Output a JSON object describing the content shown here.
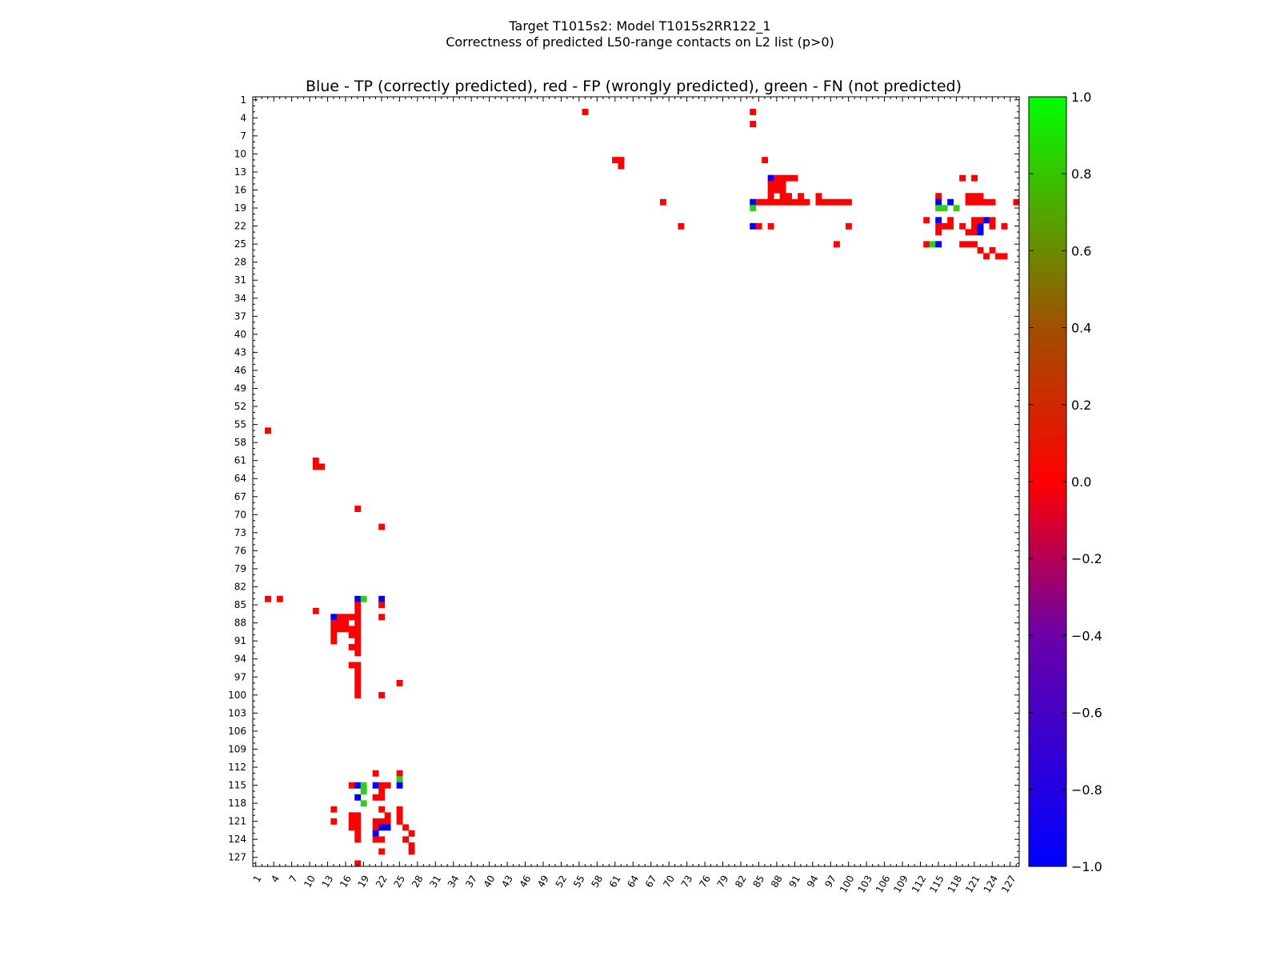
{
  "title": "Target T1015s2: Model T1015s2RR122_1",
  "subtitle": "Correctness of predicted L50-range contacts on L2 list (p>0)",
  "chart_data": {
    "type": "heatmap",
    "title": "Blue - TP (correctly predicted), red - FP (wrongly predicted), green - FN (not predicted)",
    "n_residues": 128,
    "x_ticks": [
      1,
      4,
      7,
      10,
      13,
      16,
      19,
      22,
      25,
      28,
      31,
      34,
      37,
      40,
      43,
      46,
      49,
      52,
      55,
      58,
      61,
      64,
      67,
      70,
      73,
      76,
      79,
      82,
      85,
      88,
      91,
      94,
      97,
      100,
      103,
      106,
      109,
      112,
      115,
      118,
      121,
      124,
      127
    ],
    "y_ticks": [
      1,
      4,
      7,
      10,
      13,
      16,
      19,
      22,
      25,
      28,
      31,
      34,
      37,
      40,
      43,
      46,
      49,
      52,
      55,
      58,
      61,
      64,
      67,
      70,
      73,
      76,
      79,
      82,
      85,
      88,
      91,
      94,
      97,
      100,
      103,
      106,
      109,
      112,
      115,
      118,
      121,
      124,
      127
    ],
    "colorbar": {
      "min": -1.0,
      "max": 1.0,
      "ticks": [
        "1.0",
        "0.8",
        "0.6",
        "0.4",
        "0.2",
        "0.0",
        "−0.2",
        "−0.4",
        "−0.6",
        "−0.8",
        "−1.0"
      ],
      "tick_values": [
        1.0,
        0.8,
        0.6,
        0.4,
        0.2,
        0.0,
        -0.2,
        -0.4,
        -0.6,
        -0.8,
        -1.0
      ],
      "colors": {
        "low": "#0000ff",
        "mid_low": "#8000a0",
        "zero": "#ff0000",
        "high": "#00ff00"
      }
    },
    "categories": {
      "TP": {
        "value": -1,
        "color": "#0000ff"
      },
      "FP": {
        "value": 0,
        "color": "#ff0000"
      },
      "FN": {
        "value": 1,
        "color": "#33cc1a"
      }
    },
    "cells": [
      [
        3,
        56,
        "FP"
      ],
      [
        3,
        84,
        "FP"
      ],
      [
        5,
        84,
        "FP"
      ],
      [
        11,
        61,
        "FP"
      ],
      [
        11,
        62,
        "FP"
      ],
      [
        12,
        62,
        "FP"
      ],
      [
        11,
        86,
        "FP"
      ],
      [
        14,
        87,
        "TP"
      ],
      [
        14,
        88,
        "FP"
      ],
      [
        14,
        89,
        "FP"
      ],
      [
        14,
        90,
        "FP"
      ],
      [
        14,
        91,
        "FP"
      ],
      [
        15,
        87,
        "FP"
      ],
      [
        15,
        88,
        "FP"
      ],
      [
        15,
        89,
        "FP"
      ],
      [
        16,
        87,
        "FP"
      ],
      [
        16,
        88,
        "FP"
      ],
      [
        16,
        89,
        "FP"
      ],
      [
        14,
        119,
        "FP"
      ],
      [
        14,
        121,
        "FP"
      ],
      [
        17,
        87,
        "FP"
      ],
      [
        17,
        89,
        "FP"
      ],
      [
        17,
        90,
        "FP"
      ],
      [
        17,
        92,
        "FP"
      ],
      [
        17,
        95,
        "FP"
      ],
      [
        17,
        115,
        "FP"
      ],
      [
        17,
        120,
        "FP"
      ],
      [
        17,
        121,
        "FP"
      ],
      [
        17,
        122,
        "FP"
      ],
      [
        18,
        84,
        "TP"
      ],
      [
        18,
        85,
        "FP"
      ],
      [
        18,
        86,
        "FP"
      ],
      [
        18,
        87,
        "FP"
      ],
      [
        18,
        88,
        "FP"
      ],
      [
        18,
        89,
        "FP"
      ],
      [
        18,
        90,
        "FP"
      ],
      [
        18,
        91,
        "FP"
      ],
      [
        18,
        92,
        "FP"
      ],
      [
        18,
        93,
        "FP"
      ],
      [
        18,
        95,
        "FP"
      ],
      [
        18,
        96,
        "FP"
      ],
      [
        18,
        97,
        "FP"
      ],
      [
        18,
        98,
        "FP"
      ],
      [
        18,
        99,
        "FP"
      ],
      [
        18,
        100,
        "FP"
      ],
      [
        18,
        69,
        "FP"
      ],
      [
        18,
        115,
        "TP"
      ],
      [
        18,
        117,
        "TP"
      ],
      [
        18,
        120,
        "FP"
      ],
      [
        18,
        121,
        "FP"
      ],
      [
        18,
        122,
        "FP"
      ],
      [
        18,
        123,
        "FP"
      ],
      [
        18,
        124,
        "FP"
      ],
      [
        18,
        128,
        "FP"
      ],
      [
        19,
        84,
        "FN"
      ],
      [
        19,
        115,
        "FN"
      ],
      [
        19,
        116,
        "FN"
      ],
      [
        19,
        118,
        "FN"
      ],
      [
        21,
        113,
        "FP"
      ],
      [
        21,
        115,
        "TP"
      ],
      [
        21,
        117,
        "FP"
      ],
      [
        21,
        121,
        "FP"
      ],
      [
        21,
        122,
        "FP"
      ],
      [
        21,
        123,
        "TP"
      ],
      [
        21,
        124,
        "FP"
      ],
      [
        22,
        121,
        "FP"
      ],
      [
        22,
        122,
        "TP"
      ],
      [
        22,
        126,
        "FP"
      ],
      [
        22,
        72,
        "FP"
      ],
      [
        22,
        84,
        "TP"
      ],
      [
        22,
        85,
        "FP"
      ],
      [
        22,
        87,
        "FP"
      ],
      [
        22,
        100,
        "FP"
      ],
      [
        22,
        115,
        "FP"
      ],
      [
        22,
        116,
        "FP"
      ],
      [
        22,
        117,
        "FP"
      ],
      [
        22,
        119,
        "FP"
      ],
      [
        22,
        124,
        "FP"
      ],
      [
        23,
        115,
        "FP"
      ],
      [
        23,
        120,
        "FP"
      ],
      [
        23,
        121,
        "FP"
      ],
      [
        23,
        122,
        "TP"
      ],
      [
        25,
        98,
        "FP"
      ],
      [
        25,
        113,
        "FP"
      ],
      [
        25,
        114,
        "FN"
      ],
      [
        25,
        115,
        "TP"
      ],
      [
        25,
        119,
        "FP"
      ],
      [
        25,
        120,
        "FP"
      ],
      [
        25,
        121,
        "FP"
      ],
      [
        26,
        122,
        "FP"
      ],
      [
        26,
        124,
        "FP"
      ],
      [
        27,
        123,
        "FP"
      ],
      [
        27,
        125,
        "FP"
      ],
      [
        27,
        126,
        "FP"
      ]
    ]
  }
}
